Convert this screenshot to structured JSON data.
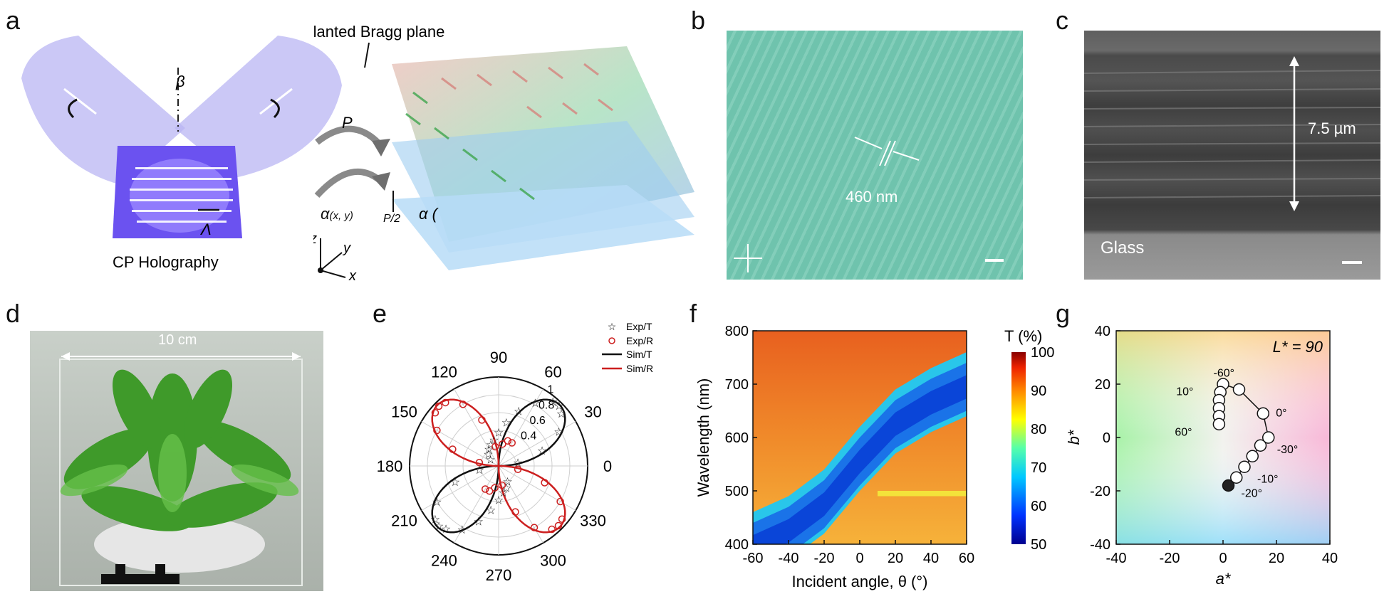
{
  "panel_letters": [
    "a",
    "b",
    "c",
    "d",
    "e",
    "f",
    "g"
  ],
  "panel_a": {
    "caption": "CP Holography",
    "beta": "β",
    "lambda": "Λ",
    "bragg_title": "Slanted Bragg plane",
    "p_label": "P",
    "alpha_label": "α",
    "alpha_sub": "(x, y)",
    "p_half": "P/2",
    "alpha_small": "α (",
    "axis_z": "z",
    "axis_y": "y",
    "axis_x": "x"
  },
  "panel_b": {
    "period_label": "460 nm"
  },
  "panel_c": {
    "thickness_label": "7.5 µm",
    "glass_label": "Glass"
  },
  "panel_d": {
    "size_label": "10 cm"
  },
  "panel_e": {
    "angle_labels": [
      "0",
      "30",
      "60",
      "90",
      "120",
      "150",
      "180",
      "210",
      "240",
      "270",
      "300",
      "330"
    ],
    "radial_labels": [
      "0.4",
      "0.6",
      "0.8",
      "1"
    ],
    "legend": [
      "Exp/T",
      "Exp/R",
      "Sim/T",
      "Sim/R"
    ],
    "colors": {
      "t": "#111111",
      "r": "#cc1f1f"
    }
  },
  "panel_f": {
    "x_label": "Incident angle, θ (°)",
    "y_label": "Wavelength (nm)",
    "x_ticks": [
      "-60",
      "-40",
      "-20",
      "0",
      "20",
      "40",
      "60"
    ],
    "y_ticks": [
      "400",
      "500",
      "600",
      "700",
      "800"
    ],
    "cbar_title": "T (%)",
    "cbar_ticks": [
      "50",
      "60",
      "70",
      "80",
      "90",
      "100"
    ]
  },
  "panel_g": {
    "x_label": "a*",
    "y_label": "b*",
    "l_label": "L* = 90",
    "x_ticks": [
      "-40",
      "-20",
      "0",
      "20",
      "40"
    ],
    "y_ticks": [
      "-40",
      "-20",
      "0",
      "20",
      "40"
    ],
    "point_labels": [
      "-20°",
      "-10°",
      "-30°",
      "0°",
      "-60°",
      "10°",
      "60°"
    ]
  },
  "chart_data": [
    {
      "type": "scatter",
      "title": "",
      "xlabel": "",
      "ylabel": "",
      "polar": true,
      "angle_ticks_deg": [
        0,
        30,
        60,
        90,
        120,
        150,
        180,
        210,
        240,
        270,
        300,
        330
      ],
      "radial_ticks": [
        0.4,
        0.6,
        0.8,
        1
      ],
      "series": [
        {
          "name": "Exp/T",
          "marker": "star",
          "angles_deg": [
            10,
            20,
            30,
            40,
            45,
            50,
            60,
            70,
            80,
            90,
            100,
            110,
            120,
            130,
            140,
            190,
            200,
            210,
            220,
            225,
            230,
            240,
            250,
            260,
            270,
            280,
            290,
            300
          ],
          "r": [
            0.22,
            0.52,
            0.78,
            0.92,
            0.96,
            0.95,
            0.82,
            0.66,
            0.5,
            0.38,
            0.3,
            0.26,
            0.22,
            0.18,
            0.12,
            0.22,
            0.52,
            0.8,
            0.93,
            0.95,
            0.92,
            0.82,
            0.66,
            0.5,
            0.38,
            0.3,
            0.26,
            0.2
          ]
        },
        {
          "name": "Exp/R",
          "marker": "circle",
          "angles_deg": [
            100,
            110,
            120,
            130,
            135,
            140,
            150,
            160,
            170,
            280,
            290,
            300,
            310,
            315,
            320,
            330,
            340,
            350,
            60,
            70,
            80,
            240,
            250,
            260
          ],
          "r": [
            0.22,
            0.55,
            0.8,
            0.93,
            0.95,
            0.93,
            0.8,
            0.55,
            0.22,
            0.22,
            0.55,
            0.8,
            0.93,
            0.95,
            0.93,
            0.8,
            0.55,
            0.22,
            0.3,
            0.3,
            0.25,
            0.3,
            0.3,
            0.25
          ]
        },
        {
          "name": "Sim/T",
          "marker": "line",
          "angles_deg": [
            0,
            15,
            30,
            45,
            60,
            75,
            90,
            180,
            195,
            210,
            225,
            240,
            255,
            270
          ],
          "r": [
            0.02,
            0.5,
            0.87,
            1.0,
            0.87,
            0.5,
            0.02,
            0.02,
            0.5,
            0.87,
            1.0,
            0.87,
            0.5,
            0.02
          ]
        },
        {
          "name": "Sim/R",
          "marker": "line",
          "angles_deg": [
            90,
            105,
            120,
            135,
            150,
            165,
            180,
            270,
            285,
            300,
            315,
            330,
            345,
            360
          ],
          "r": [
            0.02,
            0.5,
            0.87,
            1.0,
            0.87,
            0.5,
            0.02,
            0.02,
            0.5,
            0.87,
            1.0,
            0.87,
            0.5,
            0.02
          ]
        }
      ]
    },
    {
      "type": "heatmap",
      "title": "",
      "xlabel": "Incident angle, θ (°)",
      "ylabel": "Wavelength (nm)",
      "xlim": [
        -60,
        60
      ],
      "ylim": [
        400,
        800
      ],
      "colorbar": {
        "label": "T (%)",
        "range": [
          50,
          100
        ]
      },
      "features": {
        "reflection_band_center_nm": {
          "x": [
            -60,
            -40,
            -20,
            0,
            20,
            40,
            60
          ],
          "y": [
            400,
            430,
            480,
            560,
            630,
            670,
            700
          ]
        },
        "background_T_percent": 92,
        "band_T_percent": 55,
        "secondary_band_nm": [
          490,
          500
        ]
      }
    },
    {
      "type": "scatter",
      "title": "",
      "xlabel": "a*",
      "ylabel": "b*",
      "xlim": [
        -40,
        40
      ],
      "ylim": [
        -40,
        40
      ],
      "annotation": "L* = 90",
      "series": [
        {
          "name": "",
          "x": [
            2,
            5,
            8,
            11,
            14,
            17,
            15,
            6,
            0,
            -1,
            -1.5,
            -1.5,
            -1.5,
            -1.5
          ],
          "y": [
            -18,
            -15,
            -11,
            -7,
            -3,
            0,
            9,
            18,
            20,
            17,
            14,
            11,
            8,
            5
          ],
          "labels": [
            "60°",
            "",
            "10°",
            "",
            "",
            "0°",
            "-10°",
            "-20°",
            "",
            "-30°",
            "",
            "",
            "",
            "-60°"
          ]
        }
      ]
    }
  ]
}
